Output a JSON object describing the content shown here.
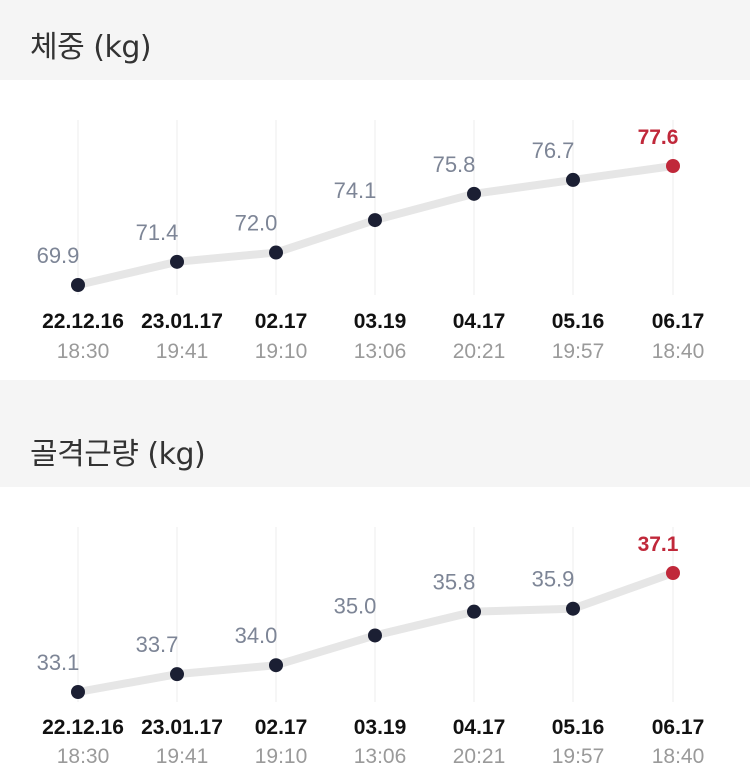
{
  "sections": [
    {
      "title": "체중 (kg)",
      "chart_data": {
        "type": "line",
        "categories": [
          "22.12.16",
          "23.01.17",
          "02.17",
          "03.19",
          "04.17",
          "05.16",
          "06.17"
        ],
        "times": [
          "18:30",
          "19:41",
          "19:10",
          "13:06",
          "20:21",
          "19:57",
          "18:40"
        ],
        "values": [
          69.9,
          71.4,
          72.0,
          74.1,
          75.8,
          76.7,
          77.6
        ],
        "value_labels": [
          "69.9",
          "71.4",
          "72.0",
          "74.1",
          "75.8",
          "76.7",
          "77.6"
        ],
        "ylim": [
          69.9,
          77.6
        ],
        "highlight_last": true,
        "colors": {
          "line": "#e6e6e6",
          "point": "#1b1f33",
          "highlight": "#c0283a",
          "grid": "#ececec"
        }
      }
    },
    {
      "title": "골격근량 (kg)",
      "chart_data": {
        "type": "line",
        "categories": [
          "22.12.16",
          "23.01.17",
          "02.17",
          "03.19",
          "04.17",
          "05.16",
          "06.17"
        ],
        "times": [
          "18:30",
          "19:41",
          "19:10",
          "13:06",
          "20:21",
          "19:57",
          "18:40"
        ],
        "values": [
          33.1,
          33.7,
          34.0,
          35.0,
          35.8,
          35.9,
          37.1
        ],
        "value_labels": [
          "33.1",
          "33.7",
          "34.0",
          "35.0",
          "35.8",
          "35.9",
          "37.1"
        ],
        "ylim": [
          33.1,
          37.1
        ],
        "highlight_last": true,
        "colors": {
          "line": "#e6e6e6",
          "point": "#1b1f33",
          "highlight": "#c0283a",
          "grid": "#ececec"
        }
      }
    }
  ]
}
